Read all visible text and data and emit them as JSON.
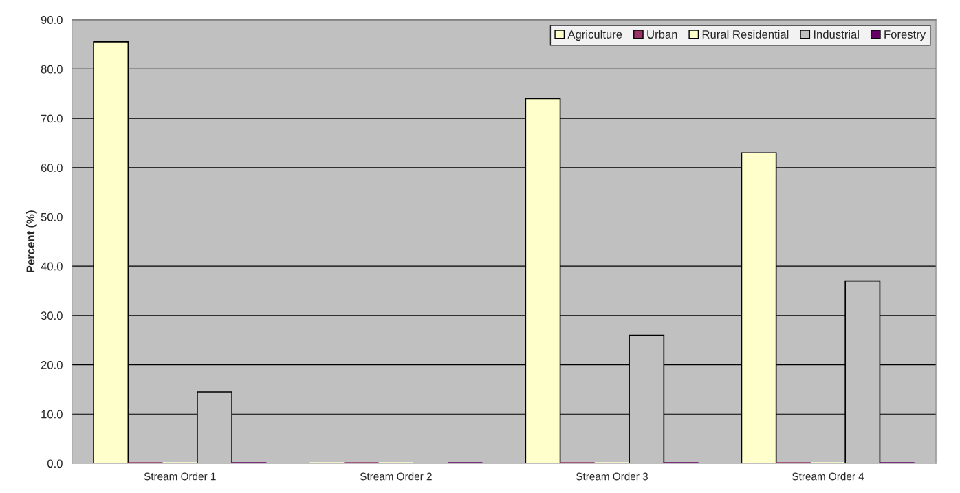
{
  "chart_data": {
    "type": "bar",
    "ylabel": "Percent (%)",
    "categories": [
      "Stream Order 1",
      "Stream Order 2",
      "Stream Order 3",
      "Stream Order 4"
    ],
    "series": [
      {
        "name": "Agriculture",
        "color": "#ffffcc",
        "values": [
          85.5,
          0,
          74.0,
          63.0
        ]
      },
      {
        "name": "Urban",
        "color": "#993366",
        "values": [
          0,
          0,
          0,
          0
        ]
      },
      {
        "name": "Rural Residential",
        "color": "#ffffcc",
        "values": [
          0,
          0,
          0,
          0
        ]
      },
      {
        "name": "Industrial",
        "color": "#c0c0c0",
        "values": [
          14.5,
          0,
          26.0,
          37.0
        ]
      },
      {
        "name": "Forestry",
        "color": "#660066",
        "values": [
          0,
          0,
          0,
          0
        ]
      }
    ],
    "ylim": [
      0,
      90
    ],
    "yticks": [
      {
        "value": 0,
        "label": "0.0"
      },
      {
        "value": 10,
        "label": "10.0"
      },
      {
        "value": 20,
        "label": "20.0"
      },
      {
        "value": 30,
        "label": "30.0"
      },
      {
        "value": 40,
        "label": "40.0"
      },
      {
        "value": 50,
        "label": "50.0"
      },
      {
        "value": 60,
        "label": "60.0"
      },
      {
        "value": 70,
        "label": "70.0"
      },
      {
        "value": 80,
        "label": "80.0"
      },
      {
        "value": 90,
        "label": "90.0"
      }
    ],
    "grid": "y",
    "legend": "top right"
  }
}
